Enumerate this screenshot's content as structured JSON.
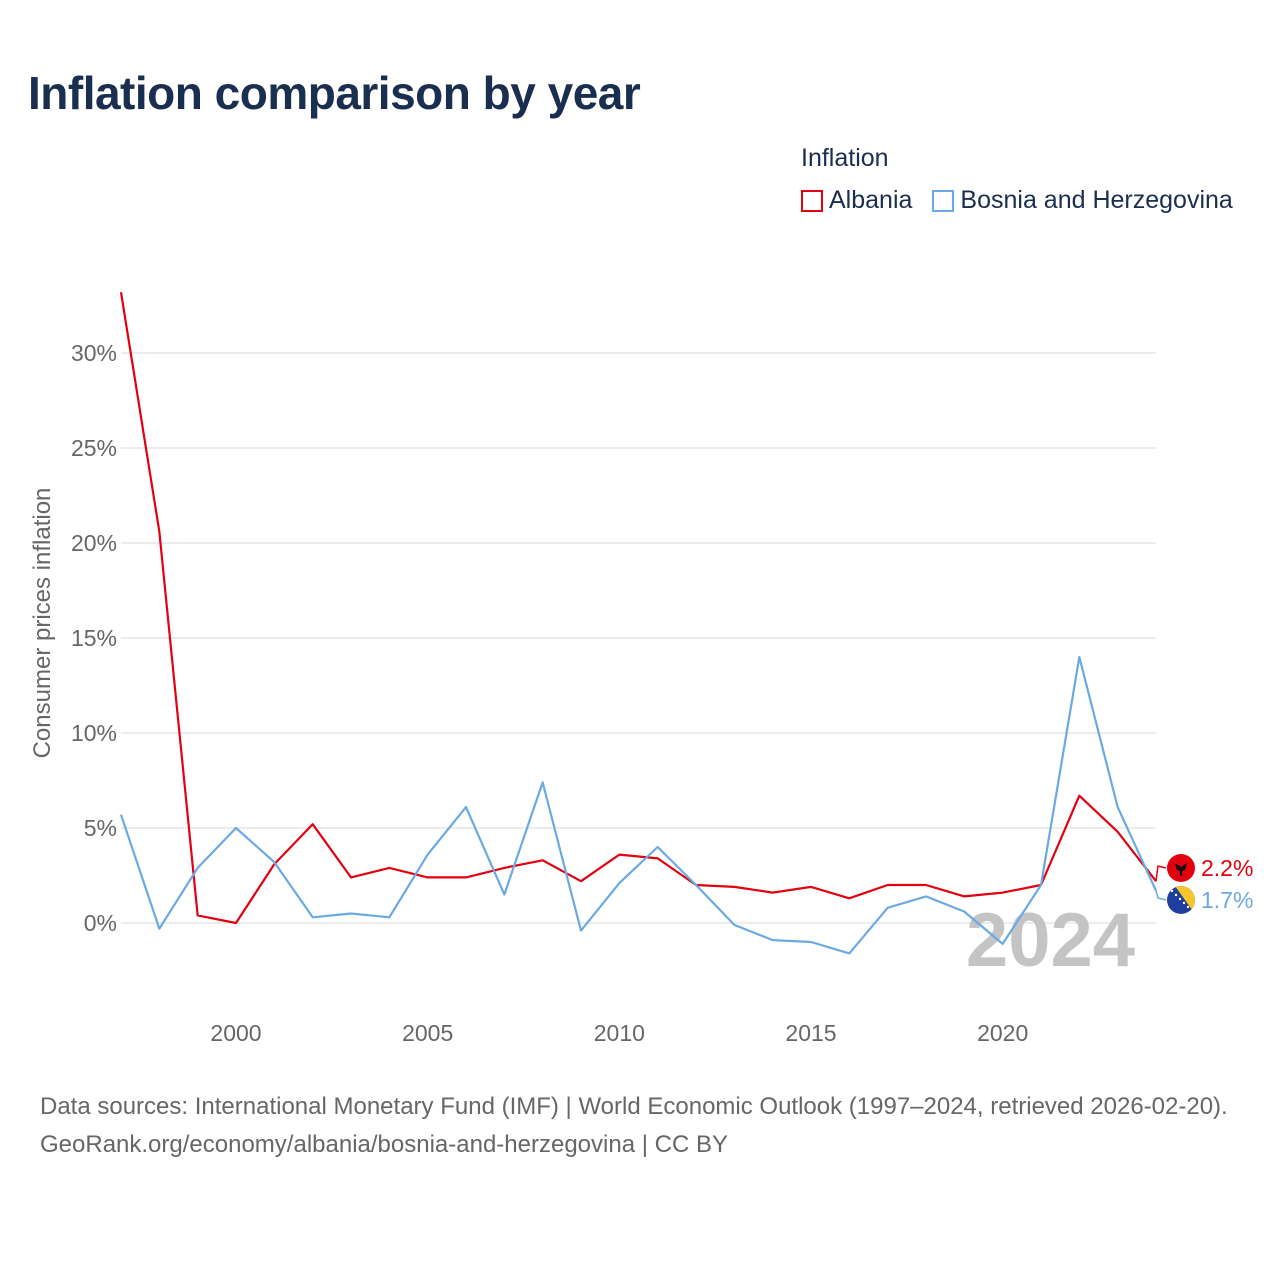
{
  "title": "Inflation comparison by year",
  "legend": {
    "title": "Inflation",
    "items": [
      {
        "label": "Albania",
        "color": "#e3000f"
      },
      {
        "label": "Bosnia and Herzegovina",
        "color": "#6aa9e4"
      }
    ]
  },
  "footer": {
    "line1": "Data sources: International Monetary Fund (IMF) | World Economic Outlook (1997–2024, retrieved 2026-02-20).",
    "line2": "GeoRank.org/economy/albania/bosnia-and-herzegovina | CC BY"
  },
  "chart_data": {
    "type": "line",
    "title": "Inflation comparison by year",
    "xlabel": "",
    "ylabel": "Consumer prices inflation",
    "xlim": [
      1997,
      2024
    ],
    "ylim": [
      -4,
      33
    ],
    "yticks": [
      0,
      5,
      10,
      15,
      20,
      25,
      30
    ],
    "ytick_labels": [
      "0%",
      "5%",
      "10%",
      "15%",
      "20%",
      "25%",
      "30%"
    ],
    "xticks": [
      2000,
      2005,
      2010,
      2015,
      2020
    ],
    "xtick_labels": [
      "2000",
      "2005",
      "2010",
      "2015",
      "2020"
    ],
    "grid": true,
    "legend_position": "top-right",
    "watermark_year": "2024",
    "x": [
      1997,
      1998,
      1999,
      2000,
      2001,
      2002,
      2003,
      2004,
      2005,
      2006,
      2007,
      2008,
      2009,
      2010,
      2011,
      2012,
      2013,
      2014,
      2015,
      2016,
      2017,
      2018,
      2019,
      2020,
      2021,
      2022,
      2023,
      2024
    ],
    "series": [
      {
        "name": "Albania",
        "color": "#e3000f",
        "values": [
          33.2,
          20.6,
          0.4,
          0.0,
          3.1,
          5.2,
          2.4,
          2.9,
          2.4,
          2.4,
          2.9,
          3.3,
          2.2,
          3.6,
          3.4,
          2.0,
          1.9,
          1.6,
          1.9,
          1.3,
          2.0,
          2.0,
          1.4,
          1.6,
          2.0,
          6.7,
          4.8,
          2.2
        ],
        "end_label": "2.2%"
      },
      {
        "name": "Bosnia and Herzegovina",
        "color": "#6aa9e4",
        "values": [
          5.7,
          -0.3,
          2.9,
          5.0,
          3.2,
          0.3,
          0.5,
          0.3,
          3.6,
          6.1,
          1.5,
          7.4,
          -0.4,
          2.1,
          4.0,
          2.0,
          -0.1,
          -0.9,
          -1.0,
          -1.6,
          0.8,
          1.4,
          0.6,
          -1.1,
          2.0,
          14.0,
          6.1,
          1.7
        ],
        "end_label": "1.7%"
      }
    ]
  }
}
